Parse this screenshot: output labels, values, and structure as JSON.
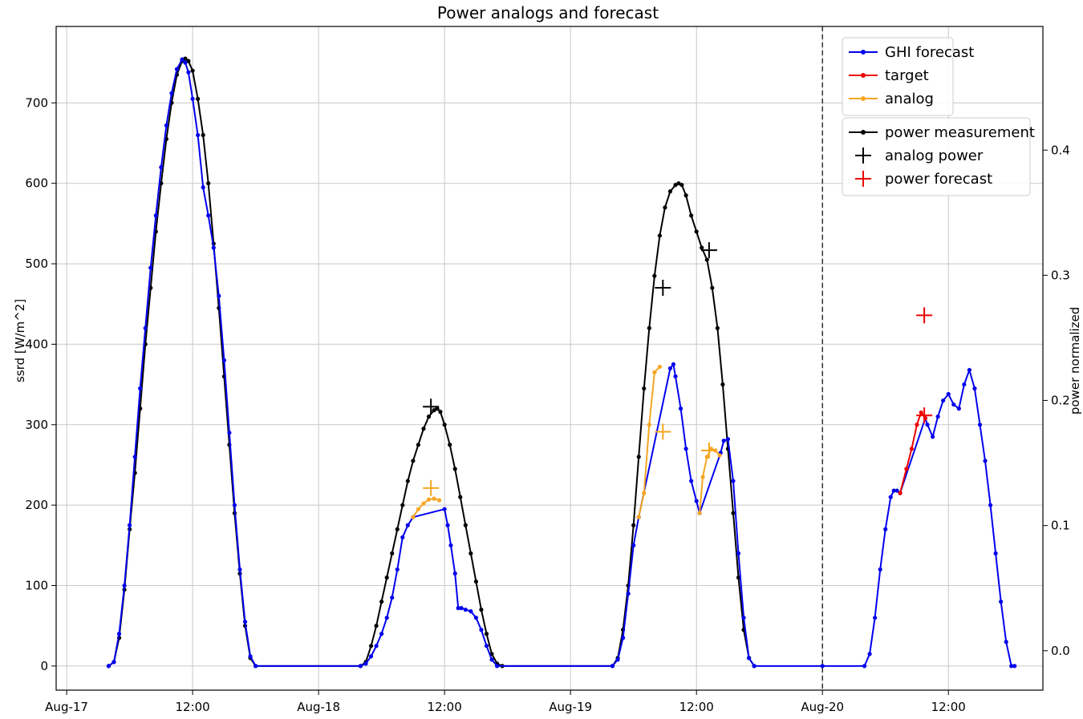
{
  "chart_data": {
    "type": "line",
    "title": "Power analogs and forecast",
    "ylabel": "ssrd [W/m^2]",
    "y2label": "power normalized",
    "grid": true,
    "x_unit": "hours since Aug-17 00:00",
    "xlim": [
      -1,
      93
    ],
    "ylim": [
      -30,
      795
    ],
    "y2lim": [
      -0.0315,
      0.4988
    ],
    "x_ticks": [
      {
        "x": 0,
        "label": "Aug-17"
      },
      {
        "x": 12,
        "label": "12:00"
      },
      {
        "x": 24,
        "label": "Aug-18"
      },
      {
        "x": 36,
        "label": "12:00"
      },
      {
        "x": 48,
        "label": "Aug-19"
      },
      {
        "x": 60,
        "label": "12:00"
      },
      {
        "x": 72,
        "label": "Aug-20"
      },
      {
        "x": 84,
        "label": "12:00"
      }
    ],
    "y_ticks": [
      0,
      100,
      200,
      300,
      400,
      500,
      600,
      700
    ],
    "y2_ticks": [
      {
        "v": 0.0,
        "label": "0.0"
      },
      {
        "v": 0.1,
        "label": "0.1"
      },
      {
        "v": 0.2,
        "label": "0.2"
      },
      {
        "v": 0.3,
        "label": "0.3"
      },
      {
        "v": 0.4,
        "label": "0.4"
      }
    ],
    "vline_x": 72,
    "legend_left": [
      {
        "name": "GHI forecast",
        "color": "#0000ee",
        "marker": "line"
      },
      {
        "name": "target",
        "color": "#ee0000",
        "marker": "line"
      },
      {
        "name": "analog",
        "color": "#f5a623",
        "marker": "line"
      }
    ],
    "legend_right": [
      {
        "name": "power measurement",
        "color": "#000000",
        "marker": "line"
      },
      {
        "name": "analog power",
        "color": "#000000",
        "marker": "plus"
      },
      {
        "name": "power forecast",
        "color": "#ee0000",
        "marker": "plus"
      }
    ],
    "series": [
      {
        "name": "power measurement",
        "axis": "left",
        "color": "#000000",
        "points": [
          [
            4,
            0
          ],
          [
            4.5,
            5
          ],
          [
            5,
            35
          ],
          [
            5.5,
            95
          ],
          [
            6,
            170
          ],
          [
            6.5,
            240
          ],
          [
            7,
            320
          ],
          [
            7.5,
            400
          ],
          [
            8,
            470
          ],
          [
            8.5,
            540
          ],
          [
            9,
            600
          ],
          [
            9.5,
            655
          ],
          [
            10,
            700
          ],
          [
            10.5,
            735
          ],
          [
            11,
            752
          ],
          [
            11.3,
            755
          ],
          [
            11.6,
            752
          ],
          [
            12,
            740
          ],
          [
            12.5,
            705
          ],
          [
            13,
            660
          ],
          [
            13.5,
            600
          ],
          [
            14,
            525
          ],
          [
            14.5,
            445
          ],
          [
            15,
            360
          ],
          [
            15.5,
            275
          ],
          [
            16,
            190
          ],
          [
            16.5,
            115
          ],
          [
            17,
            50
          ],
          [
            17.5,
            10
          ],
          [
            18,
            0
          ],
          [
            28,
            0
          ],
          [
            28.5,
            5
          ],
          [
            29,
            25
          ],
          [
            29.5,
            50
          ],
          [
            30,
            80
          ],
          [
            30.5,
            110
          ],
          [
            31,
            140
          ],
          [
            31.5,
            170
          ],
          [
            32,
            200
          ],
          [
            32.5,
            230
          ],
          [
            33,
            255
          ],
          [
            33.5,
            275
          ],
          [
            34,
            295
          ],
          [
            34.5,
            310
          ],
          [
            35,
            318
          ],
          [
            35.3,
            320
          ],
          [
            35.6,
            316
          ],
          [
            36,
            300
          ],
          [
            36.5,
            275
          ],
          [
            37,
            245
          ],
          [
            37.5,
            210
          ],
          [
            38,
            175
          ],
          [
            38.5,
            140
          ],
          [
            39,
            105
          ],
          [
            39.5,
            70
          ],
          [
            40,
            40
          ],
          [
            40.5,
            15
          ],
          [
            41,
            3
          ],
          [
            41.5,
            0
          ],
          [
            52,
            0
          ],
          [
            52.5,
            10
          ],
          [
            53,
            45
          ],
          [
            53.5,
            100
          ],
          [
            54,
            175
          ],
          [
            54.5,
            260
          ],
          [
            55,
            345
          ],
          [
            55.5,
            420
          ],
          [
            56,
            485
          ],
          [
            56.5,
            535
          ],
          [
            57,
            570
          ],
          [
            57.5,
            590
          ],
          [
            58,
            598
          ],
          [
            58.3,
            600
          ],
          [
            58.6,
            598
          ],
          [
            59,
            585
          ],
          [
            59.5,
            560
          ],
          [
            60,
            540
          ],
          [
            60.5,
            520
          ],
          [
            61,
            505
          ],
          [
            61.5,
            470
          ],
          [
            62,
            420
          ],
          [
            62.5,
            350
          ],
          [
            63,
            270
          ],
          [
            63.5,
            190
          ],
          [
            64,
            110
          ],
          [
            64.5,
            45
          ],
          [
            65,
            10
          ],
          [
            65.5,
            0
          ]
        ]
      },
      {
        "name": "GHI forecast",
        "axis": "left",
        "color": "#0000ee",
        "points": [
          [
            4,
            0
          ],
          [
            4.5,
            5
          ],
          [
            5,
            40
          ],
          [
            5.5,
            100
          ],
          [
            6,
            175
          ],
          [
            6.5,
            260
          ],
          [
            7,
            345
          ],
          [
            7.5,
            420
          ],
          [
            8,
            495
          ],
          [
            8.5,
            560
          ],
          [
            9,
            620
          ],
          [
            9.5,
            672
          ],
          [
            10,
            712
          ],
          [
            10.5,
            742
          ],
          [
            11,
            754
          ],
          [
            11.3,
            750
          ],
          [
            11.6,
            738
          ],
          [
            12,
            705
          ],
          [
            12.5,
            660
          ],
          [
            13,
            595
          ],
          [
            13.5,
            560
          ],
          [
            14,
            520
          ],
          [
            14.5,
            460
          ],
          [
            15,
            380
          ],
          [
            15.5,
            290
          ],
          [
            16,
            200
          ],
          [
            16.5,
            120
          ],
          [
            17,
            55
          ],
          [
            17.5,
            12
          ],
          [
            18,
            0
          ],
          [
            28,
            0
          ],
          [
            28.5,
            3
          ],
          [
            29,
            12
          ],
          [
            29.5,
            25
          ],
          [
            30,
            40
          ],
          [
            30.5,
            60
          ],
          [
            31,
            85
          ],
          [
            31.5,
            120
          ],
          [
            32,
            160
          ],
          [
            32.5,
            175
          ],
          [
            33,
            185
          ],
          [
            36,
            195
          ],
          [
            36.3,
            175
          ],
          [
            36.6,
            150
          ],
          [
            37,
            115
          ],
          [
            37.3,
            72
          ],
          [
            37.6,
            72
          ],
          [
            38,
            70
          ],
          [
            38.5,
            68
          ],
          [
            39,
            60
          ],
          [
            39.5,
            45
          ],
          [
            40,
            25
          ],
          [
            40.5,
            8
          ],
          [
            41,
            0
          ],
          [
            52,
            0
          ],
          [
            52.5,
            8
          ],
          [
            53,
            35
          ],
          [
            53.5,
            90
          ],
          [
            54,
            150
          ],
          [
            54.5,
            185
          ],
          [
            57.5,
            370
          ],
          [
            57.8,
            375
          ],
          [
            58,
            360
          ],
          [
            58.5,
            320
          ],
          [
            59,
            270
          ],
          [
            59.5,
            230
          ],
          [
            60,
            205
          ],
          [
            60.3,
            190
          ],
          [
            62.3,
            265
          ],
          [
            62.6,
            280
          ],
          [
            63,
            282
          ],
          [
            63.5,
            230
          ],
          [
            64,
            140
          ],
          [
            64.5,
            60
          ],
          [
            65,
            10
          ],
          [
            65.5,
            0
          ],
          [
            72,
            0
          ],
          [
            76,
            0
          ],
          [
            76.5,
            15
          ],
          [
            77,
            60
          ],
          [
            77.5,
            120
          ],
          [
            78,
            170
          ],
          [
            78.5,
            210
          ],
          [
            78.8,
            218
          ],
          [
            79.1,
            218
          ],
          [
            79.4,
            215
          ],
          [
            81.8,
            308
          ],
          [
            82,
            300
          ],
          [
            82.5,
            285
          ],
          [
            83,
            310
          ],
          [
            83.5,
            330
          ],
          [
            84,
            338
          ],
          [
            84.5,
            325
          ],
          [
            85,
            320
          ],
          [
            85.5,
            350
          ],
          [
            86,
            368
          ],
          [
            86.5,
            345
          ],
          [
            87,
            300
          ],
          [
            87.5,
            255
          ],
          [
            88,
            200
          ],
          [
            88.5,
            140
          ],
          [
            89,
            80
          ],
          [
            89.5,
            30
          ],
          [
            90,
            0
          ],
          [
            90.3,
            0
          ]
        ]
      },
      {
        "name": "analog",
        "axis": "left",
        "color": "#f5a623",
        "segments": [
          [
            [
              33,
              185
            ],
            [
              33.5,
              195
            ],
            [
              34,
              202
            ],
            [
              34.5,
              207
            ],
            [
              35,
              208
            ],
            [
              35.5,
              206
            ]
          ],
          [
            [
              54.5,
              185
            ],
            [
              55,
              215
            ],
            [
              55.5,
              300
            ],
            [
              56,
              365
            ],
            [
              56.5,
              372
            ]
          ],
          [
            [
              60.3,
              190
            ],
            [
              60.6,
              235
            ],
            [
              61,
              260
            ],
            [
              61.4,
              270
            ],
            [
              61.8,
              268
            ],
            [
              62.2,
              262
            ]
          ]
        ]
      },
      {
        "name": "target",
        "axis": "left",
        "color": "#ee0000",
        "points": [
          [
            79.4,
            215
          ],
          [
            80,
            245
          ],
          [
            80.5,
            270
          ],
          [
            81,
            300
          ],
          [
            81.4,
            315
          ],
          [
            81.8,
            308
          ]
        ]
      }
    ],
    "markers": [
      {
        "name": "analog power",
        "axis": "right",
        "color": "#000000",
        "x": 34.7,
        "v": 0.195
      },
      {
        "name": "analog power",
        "axis": "right",
        "color": "#000000",
        "x": 56.8,
        "v": 0.29
      },
      {
        "name": "analog power",
        "axis": "right",
        "color": "#000000",
        "x": 61.2,
        "v": 0.32
      },
      {
        "name": "analog",
        "axis": "right",
        "color": "#f5a623",
        "x": 34.7,
        "v": 0.13
      },
      {
        "name": "analog",
        "axis": "right",
        "color": "#f5a623",
        "x": 56.8,
        "v": 0.175
      },
      {
        "name": "analog",
        "axis": "right",
        "color": "#f5a623",
        "x": 61.2,
        "v": 0.16
      },
      {
        "name": "power forecast",
        "axis": "right",
        "color": "#ee0000",
        "x": 81.7,
        "v": 0.268
      },
      {
        "name": "target",
        "axis": "right",
        "color": "#ee0000",
        "x": 81.7,
        "v": 0.188
      }
    ]
  }
}
